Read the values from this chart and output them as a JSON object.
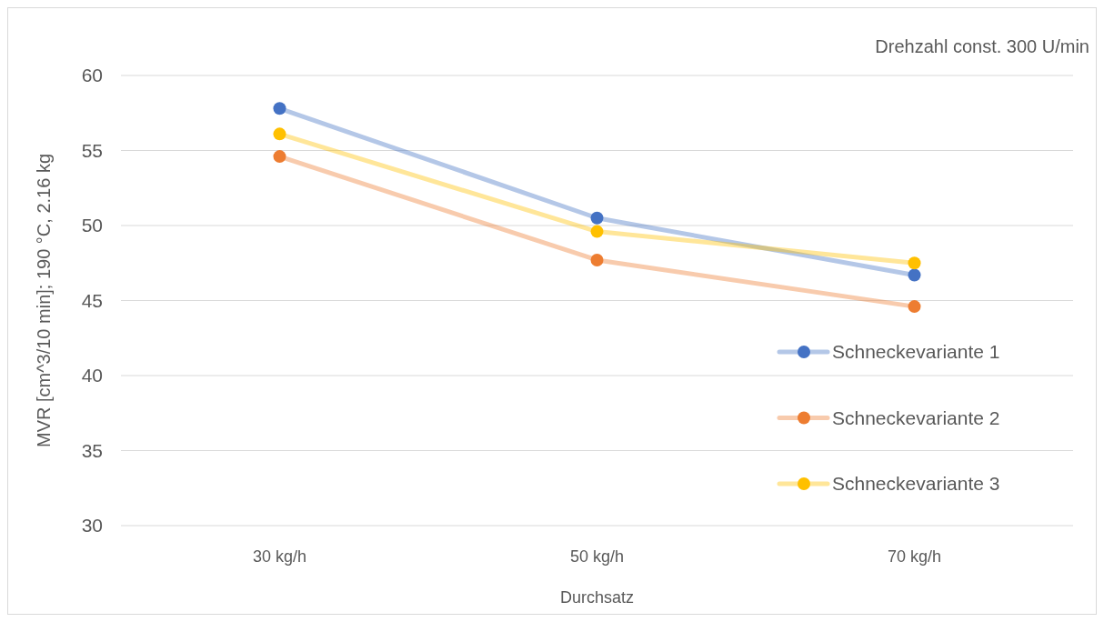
{
  "chart_data": {
    "type": "line",
    "xlabel": "Durchsatz",
    "ylabel": "MVR [cm^3/10 min]; 190 °C, 2.16 kg",
    "annotations": [
      "Drehzahl const. 300 U/min"
    ],
    "categories": [
      "30 kg/h",
      "50 kg/h",
      "70 kg/h"
    ],
    "series": [
      {
        "name": "Schneckevariante 1",
        "color": "#4472c4",
        "values": [
          57.8,
          50.5,
          46.7
        ]
      },
      {
        "name": "Schneckevariante 2",
        "color": "#ed7d31",
        "values": [
          54.6,
          47.7,
          44.6
        ]
      },
      {
        "name": "Schneckevariante 3",
        "color": "#ffc000",
        "values": [
          56.1,
          49.6,
          47.5
        ]
      }
    ],
    "ylim": [
      30,
      60
    ],
    "yticks": [
      30,
      35,
      40,
      45,
      50,
      55,
      60
    ],
    "grid": "y",
    "legend": "right",
    "marker": "circle",
    "line_style": "solid"
  }
}
